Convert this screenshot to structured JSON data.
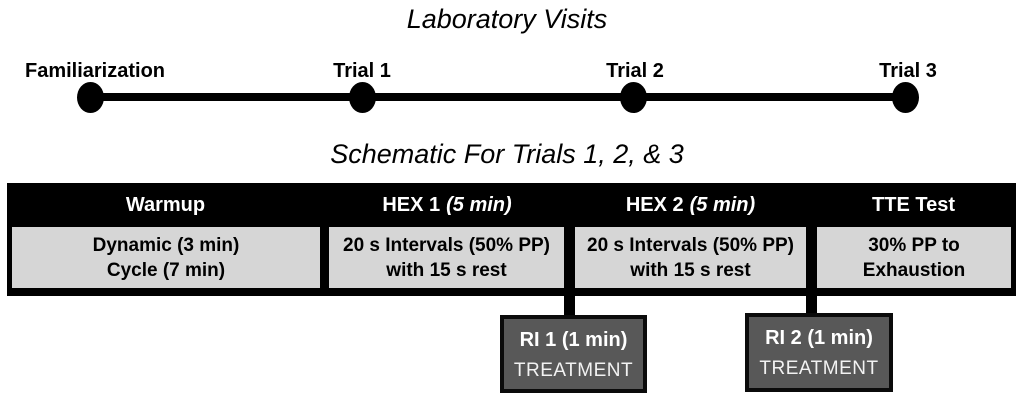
{
  "titles": {
    "timeline": "Laboratory Visits",
    "schematic": "Schematic For Trials 1, 2, & 3"
  },
  "timeline": {
    "milestones": [
      {
        "label": "Familiarization"
      },
      {
        "label": "Trial 1"
      },
      {
        "label": "Trial 2"
      },
      {
        "label": "Trial 3"
      }
    ]
  },
  "schematic_table": {
    "columns": [
      {
        "header": "Warmup",
        "header_note": "",
        "line1": "Dynamic (3 min)",
        "line2": "Cycle (7 min)"
      },
      {
        "header": "HEX 1",
        "header_note": "(5 min)",
        "line1": "20 s Intervals (50% PP)",
        "line2": "with 15 s rest"
      },
      {
        "header": "HEX 2",
        "header_note": "(5 min)",
        "line1": "20 s Intervals (50% PP)",
        "line2": "with 15 s rest"
      },
      {
        "header": "TTE Test",
        "header_note": "",
        "line1": "30% PP to",
        "line2": "Exhaustion"
      }
    ]
  },
  "treatment_boxes": [
    {
      "title": "RI 1 (1 min)",
      "subtitle": "TREATMENT"
    },
    {
      "title": "RI 2 (1 min)",
      "subtitle": "TREATMENT"
    }
  ],
  "colors": {
    "header_black": "#000000",
    "cell_gray": "#d6d6d6",
    "treatment_box_gray": "#585858",
    "text_white": "#ffffff",
    "text_black": "#000000"
  }
}
